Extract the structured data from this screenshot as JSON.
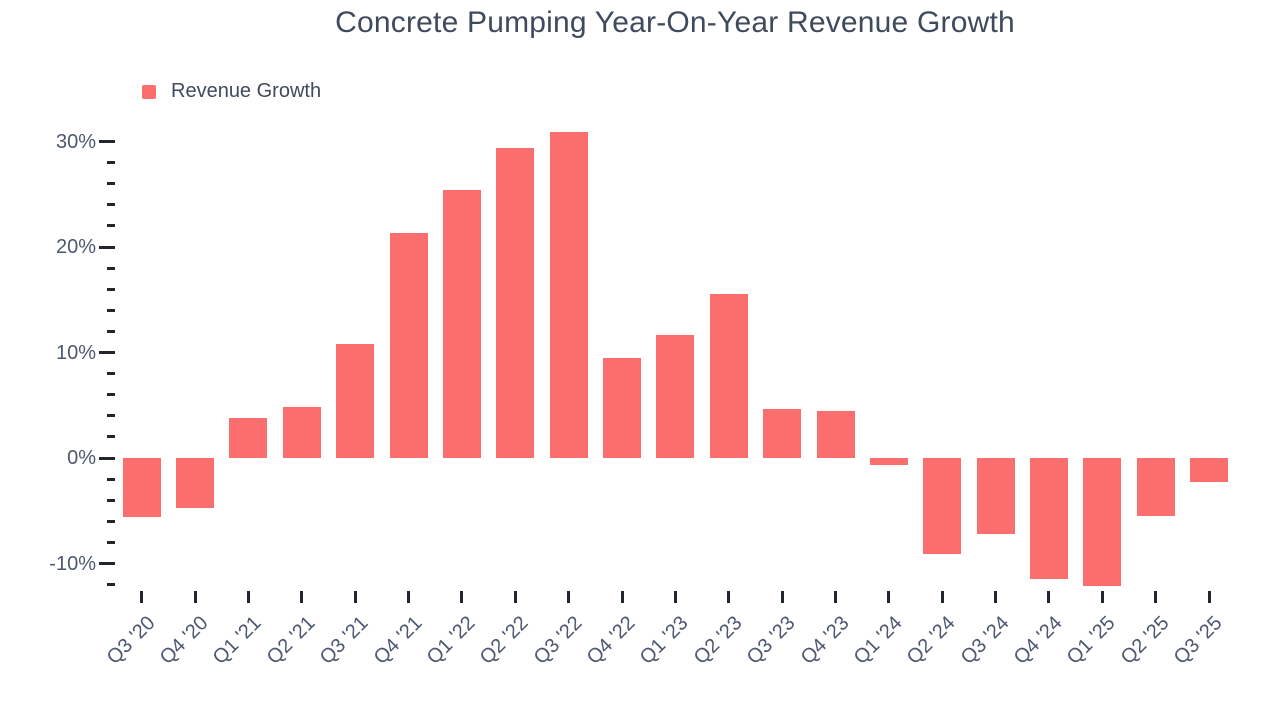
{
  "title": "Concrete Pumping Year-On-Year Revenue Growth",
  "legend": {
    "label": "Revenue Growth"
  },
  "colors": {
    "bar": "#fb6e6e",
    "title_text": "#3f4a5c",
    "axis_text": "#4d5870",
    "tick_mark": "#21252e"
  },
  "chart_data": {
    "type": "bar",
    "title": "Concrete Pumping Year-On-Year Revenue Growth",
    "categories": [
      "Q3 '20",
      "Q4 '20",
      "Q1 '21",
      "Q2 '21",
      "Q3 '21",
      "Q4 '21",
      "Q1 '22",
      "Q2 '22",
      "Q3 '22",
      "Q4 '22",
      "Q1 '23",
      "Q2 '23",
      "Q3 '23",
      "Q4 '23",
      "Q1 '24",
      "Q2 '24",
      "Q3 '24",
      "Q4 '24",
      "Q1 '25",
      "Q2 '25",
      "Q3 '25"
    ],
    "series": [
      {
        "name": "Revenue Growth",
        "values": [
          -5.6,
          -4.7,
          3.8,
          4.8,
          10.8,
          21.3,
          25.4,
          29.4,
          30.9,
          9.5,
          11.7,
          15.5,
          4.6,
          4.5,
          -0.7,
          -9.1,
          -7.2,
          -11.5,
          -12.1,
          -5.5,
          -2.3
        ]
      }
    ],
    "unit": "%",
    "xlabel": "",
    "ylabel": "",
    "y_axis": {
      "major_ticks": [
        30,
        20,
        10,
        0,
        -10
      ],
      "tick_labels": [
        "30%",
        "20%",
        "10%",
        "0%",
        "-10%"
      ],
      "minor_tick_step": 2,
      "minor_tick_min": -12,
      "minor_tick_max": 28,
      "range_shown": [
        -12.5,
        31
      ]
    },
    "grid": false,
    "legend_position": "top-left"
  }
}
